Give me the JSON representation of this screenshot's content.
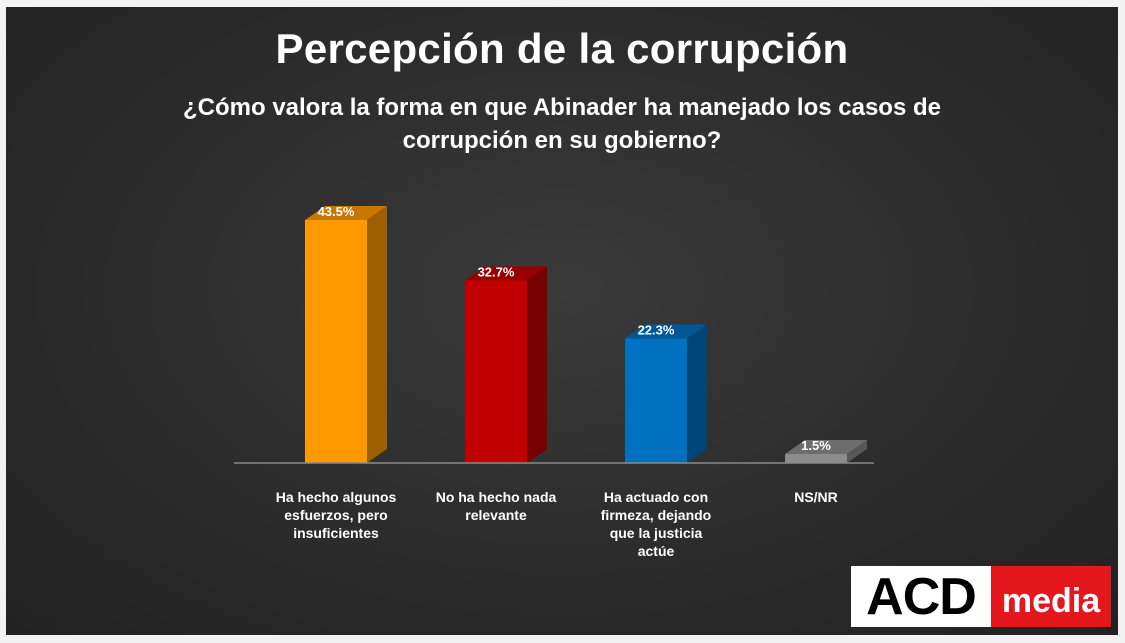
{
  "chart_data": {
    "type": "bar",
    "title": "Percepción de la corrupción",
    "subtitle": "¿Cómo valora la forma en que Abinader ha manejado los casos de corrupción en su gobierno?",
    "categories": [
      "Ha hecho algunos esfuerzos, pero insuficientes",
      "No ha hecho nada relevante",
      "Ha actuado con firmeza, dejando que la justicia actúe",
      "NS/NR"
    ],
    "values": [
      43.5,
      32.7,
      22.3,
      1.5
    ],
    "value_labels": [
      "43.5%",
      "32.7%",
      "22.3%",
      "1.5%"
    ],
    "colors": [
      "#ff9900",
      "#c00000",
      "#0070c0",
      "#8c8c8c"
    ],
    "ylim": [
      0,
      50
    ],
    "xlabel": "",
    "ylabel": "",
    "grid": false,
    "legend": "none"
  },
  "logo": {
    "brand": "ACD",
    "suffix": "media"
  }
}
